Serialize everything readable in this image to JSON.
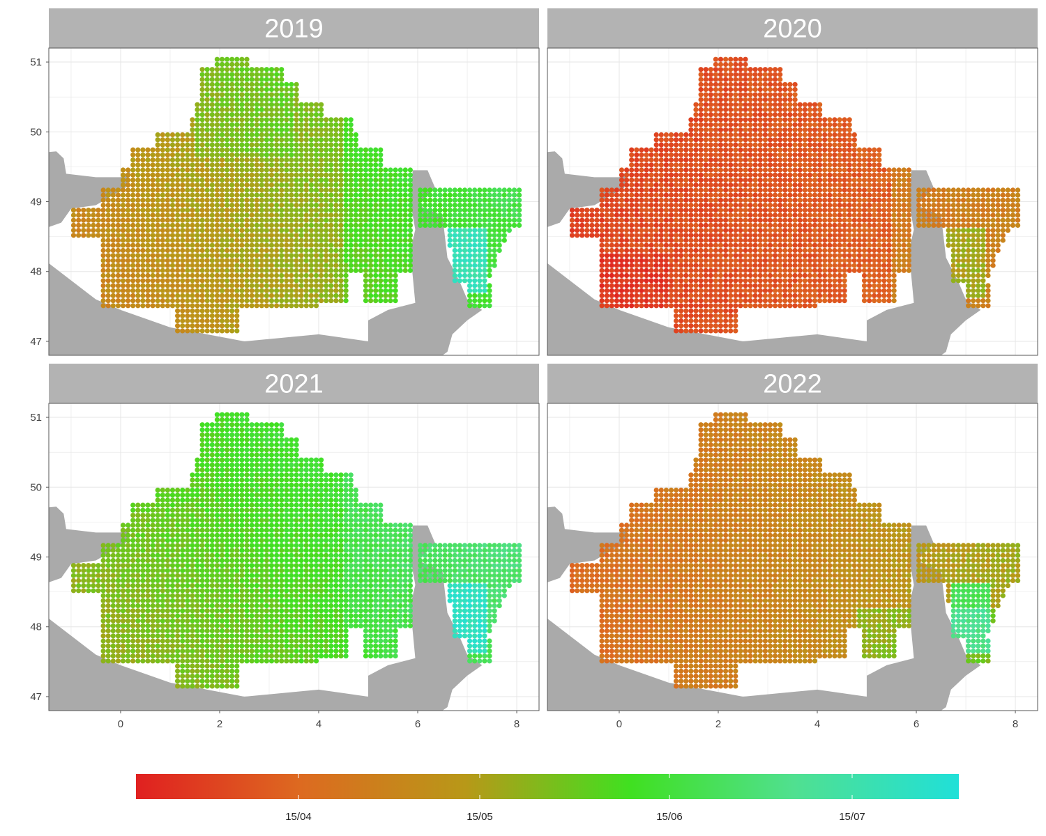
{
  "chart_data": {
    "type": "scatter",
    "title": "",
    "xlabel": "",
    "ylabel": "",
    "xlim": [
      -1.45,
      8.45
    ],
    "ylim": [
      46.8,
      51.2
    ],
    "x_ticks": [
      0,
      2,
      4,
      6,
      8
    ],
    "y_ticks": [
      47,
      48,
      49,
      50,
      51
    ],
    "grid": true,
    "legend": "bottom",
    "panels": [
      {
        "label": "2019",
        "description": "orange in the west and centre, shifting to green in the east; cyan points near lon 7, lat 48"
      },
      {
        "label": "2020",
        "description": "mostly red-orange across the whole region; yellow-green only in the far east"
      },
      {
        "label": "2021",
        "description": "olive-green across the region, greener in the north and east; cyan points near lon 7, lat 48"
      },
      {
        "label": "2022",
        "description": "orange in the west and north, olive-green in the east; green points near lon 7.2, lat 48"
      }
    ],
    "colorbar": {
      "ticks": [
        "15/04",
        "15/05",
        "15/06",
        "15/07"
      ],
      "colors": [
        "#e02020",
        "#dd6a20",
        "#b89818",
        "#40e020",
        "#50e090",
        "#20e0d8"
      ]
    }
  },
  "colors": {
    "strip": "#b3b3b3",
    "land": "#aaaaaa",
    "grid": "#e6e6e6",
    "panel_border": "#555555"
  }
}
